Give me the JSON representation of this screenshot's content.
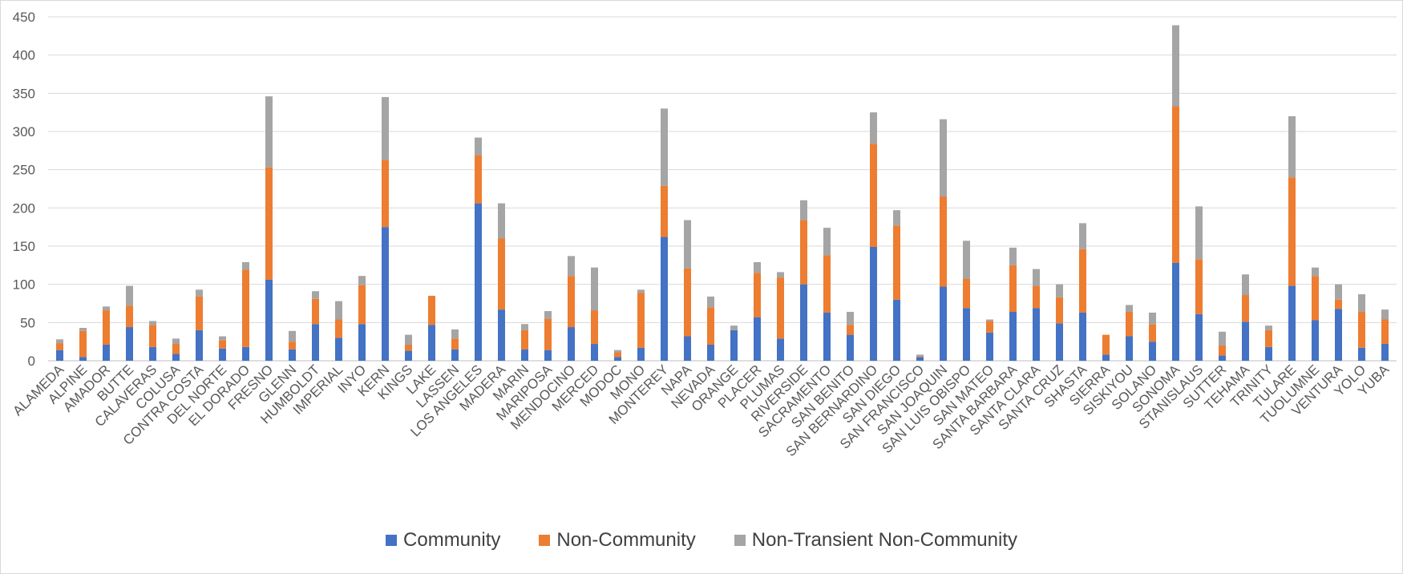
{
  "chart_data": {
    "type": "bar",
    "stacked": true,
    "title": "",
    "xlabel": "",
    "ylabel": "",
    "ylim": [
      0,
      450
    ],
    "yticks": [
      0,
      50,
      100,
      150,
      200,
      250,
      300,
      350,
      400,
      450
    ],
    "grid": true,
    "legend_position": "bottom",
    "categories": [
      "ALAMEDA",
      "ALPINE",
      "AMADOR",
      "BUTTE",
      "CALAVERAS",
      "COLUSA",
      "CONTRA COSTA",
      "DEL NORTE",
      "EL DORADO",
      "FRESNO",
      "GLENN",
      "HUMBOLDT",
      "IMPERIAL",
      "INYO",
      "KERN",
      "KINGS",
      "LAKE",
      "LASSEN",
      "LOS ANGELES",
      "MADERA",
      "MARIN",
      "MARIPOSA",
      "MENDOCINO",
      "MERCED",
      "MODOC",
      "MONO",
      "MONTEREY",
      "NAPA",
      "NEVADA",
      "ORANGE",
      "PLACER",
      "PLUMAS",
      "RIVERSIDE",
      "SACRAMENTO",
      "SAN BENITO",
      "SAN BERNARDINO",
      "SAN DIEGO",
      "SAN FRANCISCO",
      "SAN JOAQUIN",
      "SAN LUIS OBISPO",
      "SAN MATEO",
      "SANTA BARBARA",
      "SANTA CLARA",
      "SANTA CRUZ",
      "SHASTA",
      "SIERRA",
      "SISKIYOU",
      "SOLANO",
      "SONOMA",
      "STANISLAUS",
      "SUTTER",
      "TEHAMA",
      "TRINITY",
      "TULARE",
      "TUOLUMNE",
      "VENTURA",
      "YOLO",
      "YUBA"
    ],
    "series": [
      {
        "name": "Community",
        "color": "#4472c4",
        "values": [
          14,
          5,
          21,
          44,
          18,
          9,
          40,
          16,
          18,
          106,
          15,
          48,
          30,
          48,
          175,
          13,
          47,
          15,
          206,
          67,
          15,
          14,
          44,
          22,
          5,
          17,
          162,
          32,
          21,
          40,
          57,
          29,
          100,
          63,
          34,
          149,
          80,
          5,
          97,
          69,
          37,
          64,
          69,
          49,
          63,
          8,
          32,
          25,
          128,
          61,
          7,
          51,
          18,
          98,
          53,
          68,
          17,
          22
        ]
      },
      {
        "name": "Non-Community",
        "color": "#ed7d31",
        "values": [
          9,
          34,
          45,
          28,
          29,
          13,
          44,
          11,
          101,
          147,
          10,
          33,
          24,
          51,
          88,
          8,
          38,
          14,
          63,
          93,
          25,
          41,
          67,
          44,
          6,
          72,
          67,
          89,
          49,
          0,
          58,
          80,
          84,
          75,
          13,
          135,
          97,
          1,
          118,
          38,
          15,
          61,
          29,
          34,
          83,
          26,
          32,
          23,
          205,
          72,
          13,
          35,
          22,
          142,
          58,
          12,
          47,
          32
        ]
      },
      {
        "name": "Non-Transient Non-Community",
        "color": "#a5a5a5",
        "values": [
          5,
          4,
          5,
          26,
          5,
          7,
          9,
          5,
          10,
          93,
          14,
          10,
          24,
          12,
          82,
          13,
          0,
          12,
          23,
          46,
          8,
          10,
          26,
          56,
          3,
          4,
          101,
          63,
          14,
          6,
          14,
          7,
          26,
          36,
          17,
          41,
          20,
          2,
          101,
          50,
          2,
          23,
          22,
          17,
          34,
          0,
          9,
          15,
          106,
          69,
          18,
          27,
          6,
          80,
          11,
          20,
          23,
          13
        ]
      }
    ]
  }
}
